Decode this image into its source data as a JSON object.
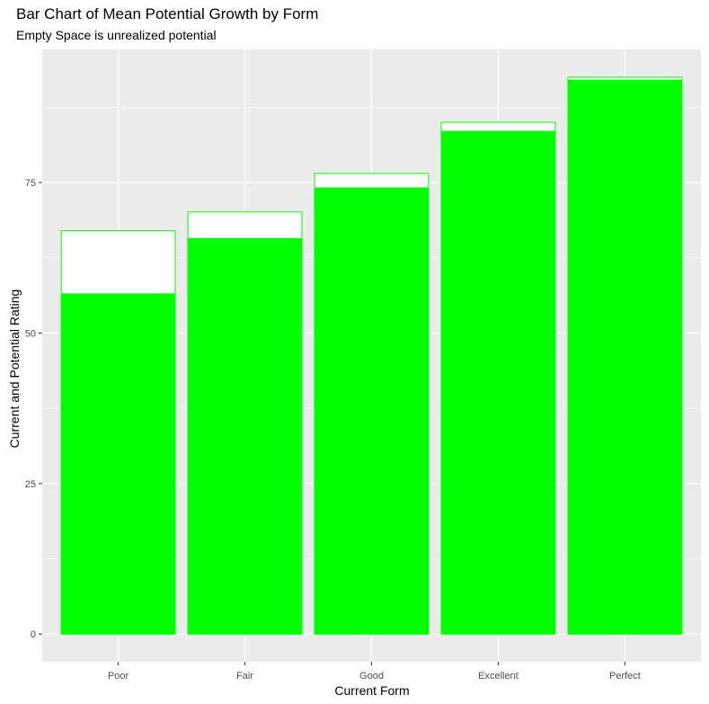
{
  "chart_data": {
    "type": "bar",
    "title": "Bar Chart of Mean Potential Growth by Form",
    "subtitle": "Empty Space is unrealized potential",
    "xlabel": "Current Form",
    "ylabel": "Current and Potential Rating",
    "categories": [
      "Poor",
      "Fair",
      "Good",
      "Excellent",
      "Perfect"
    ],
    "series": [
      {
        "values": [
          67.0,
          70.1,
          76.5,
          85.0,
          92.5
        ]
      },
      {
        "values": [
          56.5,
          65.7,
          74.1,
          83.5,
          92.0
        ]
      }
    ],
    "y_ticks": [
      0,
      25,
      50,
      75
    ],
    "ylim": [
      -4.6,
      97.1
    ],
    "grid": true,
    "colors": {
      "panel_background": "#ebebeb",
      "grid_major": "#ffffff",
      "bar_fill": "#00ff00",
      "bar_outline": "#00ff00",
      "potential_fill": "#ffffff",
      "tick_text": "#4d4d4d"
    }
  }
}
